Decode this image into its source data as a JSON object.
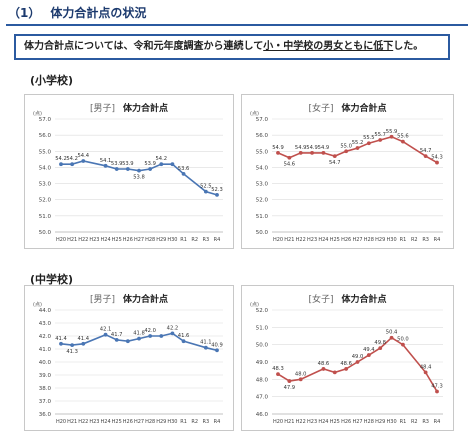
{
  "heading": {
    "number": "（1）",
    "title": "体力合計点の状況"
  },
  "summary": {
    "prefix": "体力合計点については、令和元年度調査から連続して",
    "underlined": "小・中学校の男女ともに低下",
    "suffix": "した。"
  },
  "sections": [
    {
      "label": "(小学校)"
    },
    {
      "label": "(中学校)"
    }
  ],
  "chart_data": [
    {
      "type": "line",
      "title": "体力合計点",
      "gender_label": "[男子]",
      "x": [
        "H20",
        "H21",
        "H22",
        "H23",
        "H24",
        "H25",
        "H26",
        "H27",
        "H28",
        "H29",
        "H30",
        "R1",
        "R2",
        "R3",
        "R4"
      ],
      "series": [
        {
          "values": [
            54.2,
            54.2,
            54.4,
            null,
            54.1,
            53.9,
            53.9,
            53.8,
            53.9,
            54.2,
            54.2,
            53.6,
            null,
            52.5,
            52.3
          ],
          "labels": [
            "54.2",
            "54.2",
            "54.4",
            "",
            "54.1",
            "53.9",
            "53.9",
            "53.8",
            "53.9",
            "54.2",
            "",
            "53.6",
            "",
            "52.5",
            "52.3"
          ]
        }
      ],
      "ylim": [
        50.0,
        57.0
      ],
      "yticks": [
        "50.0",
        "51.0",
        "52.0",
        "53.0",
        "54.0",
        "55.0",
        "56.0",
        "57.0"
      ],
      "unit": "(点)",
      "color": "#4a76b4"
    },
    {
      "type": "line",
      "title": "体力合計点",
      "gender_label": "[女子]",
      "x": [
        "H20",
        "H21",
        "H22",
        "H23",
        "H24",
        "H25",
        "H26",
        "H27",
        "H28",
        "H29",
        "H30",
        "R1",
        "R2",
        "R3",
        "R4"
      ],
      "series": [
        {
          "values": [
            54.9,
            54.6,
            54.9,
            54.9,
            54.9,
            54.7,
            55.0,
            55.2,
            55.5,
            55.7,
            55.9,
            55.6,
            null,
            54.7,
            54.3
          ],
          "labels": [
            "54.9",
            "54.6",
            "54.9",
            "54.9",
            "54.9",
            "54.7",
            "55.0",
            "55.2",
            "55.5",
            "55.7",
            "55.9",
            "55.6",
            "",
            "54.7",
            "54.3"
          ]
        }
      ],
      "ylim": [
        50.0,
        57.0
      ],
      "yticks": [
        "50.0",
        "51.0",
        "52.0",
        "53.0",
        "54.0",
        "55.0",
        "56.0",
        "57.0"
      ],
      "unit": "(点)",
      "color": "#c0504d"
    },
    {
      "type": "line",
      "title": "体力合計点",
      "gender_label": "[男子]",
      "x": [
        "H20",
        "H21",
        "H22",
        "H23",
        "H24",
        "H25",
        "H26",
        "H27",
        "H28",
        "H29",
        "H30",
        "R1",
        "R2",
        "R3",
        "R4"
      ],
      "series": [
        {
          "values": [
            41.4,
            41.3,
            41.4,
            null,
            42.1,
            41.7,
            41.6,
            41.8,
            42.0,
            42.0,
            42.2,
            41.6,
            null,
            41.1,
            40.9
          ],
          "labels": [
            "41.4",
            "41.3",
            "41.4",
            "",
            "42.1",
            "41.7",
            "",
            "41.8",
            "42.0",
            "",
            "42.2",
            "41.6",
            "",
            "41.1",
            "40.9"
          ]
        }
      ],
      "ylim": [
        36.0,
        44.0
      ],
      "yticks": [
        "36.0",
        "37.0",
        "38.0",
        "39.0",
        "40.0",
        "41.0",
        "42.0",
        "43.0",
        "44.0"
      ],
      "unit": "(点)",
      "color": "#4a76b4"
    },
    {
      "type": "line",
      "title": "体力合計点",
      "gender_label": "[女子]",
      "x": [
        "H20",
        "H21",
        "H22",
        "H23",
        "H24",
        "H25",
        "H26",
        "H27",
        "H28",
        "H29",
        "H30",
        "R1",
        "R2",
        "R3",
        "R4"
      ],
      "series": [
        {
          "values": [
            48.3,
            47.9,
            48.0,
            null,
            48.6,
            48.4,
            48.6,
            49.0,
            49.4,
            49.8,
            50.4,
            50.0,
            null,
            48.4,
            47.3
          ],
          "labels": [
            "48.3",
            "47.9",
            "48.0",
            "",
            "48.6",
            "",
            "48.6",
            "49.0",
            "49.4",
            "49.8",
            "50.4",
            "50.0",
            "",
            "48.4",
            "47.3"
          ]
        }
      ],
      "ylim": [
        46.0,
        52.0
      ],
      "yticks": [
        "46.0",
        "47.0",
        "48.0",
        "49.0",
        "50.0",
        "51.0",
        "52.0"
      ],
      "unit": "(点)",
      "color": "#c0504d"
    }
  ]
}
